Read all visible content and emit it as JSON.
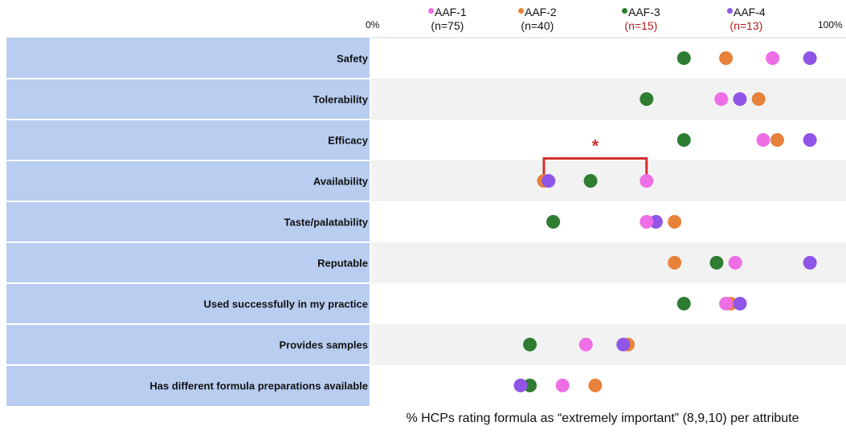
{
  "chart_data": {
    "type": "scatter",
    "title": "",
    "xlabel": "% HCPs rating formula as “extremely important” (8,9,10) per attribute",
    "xlim": [
      0,
      100
    ],
    "x_min_label": "0%",
    "x_max_label": "100%",
    "categories": [
      "Safety",
      "Tolerability",
      "Efficacy",
      "Availability",
      "Taste/palatability",
      "Reputable",
      "Used successfully in my practice",
      "Provides samples",
      "Has different formula preparations available"
    ],
    "series": [
      {
        "name": "AAF-1",
        "n": "(n=75)",
        "color": "#ee6ee6",
        "n_color": "#111111",
        "values": [
          86,
          75,
          84,
          59,
          59,
          78,
          76,
          46,
          41
        ]
      },
      {
        "name": "AAF-2",
        "n": "(n=40)",
        "color": "#e8823a",
        "n_color": "#111111",
        "values": [
          76,
          83,
          87,
          37,
          65,
          65,
          77,
          55,
          48
        ]
      },
      {
        "name": "AAF-3",
        "n": "(n=15)",
        "color": "#2e7d32",
        "n_color": "#b71c1c",
        "values": [
          67,
          59,
          67,
          47,
          39,
          74,
          67,
          34,
          34
        ]
      },
      {
        "name": "AAF-4",
        "n": "(n=13)",
        "color": "#8f55e6",
        "n_color": "#b71c1c",
        "values": [
          94,
          79,
          94,
          38,
          61,
          94,
          79,
          54,
          32
        ]
      }
    ],
    "significance": {
      "category": "Availability",
      "from": 37,
      "to": 59,
      "label": "*",
      "color": "#d32f2f"
    },
    "row_colors": [
      "#ffffff",
      "#f2f2f2"
    ],
    "label_panel_color": "#b8cdf0"
  }
}
